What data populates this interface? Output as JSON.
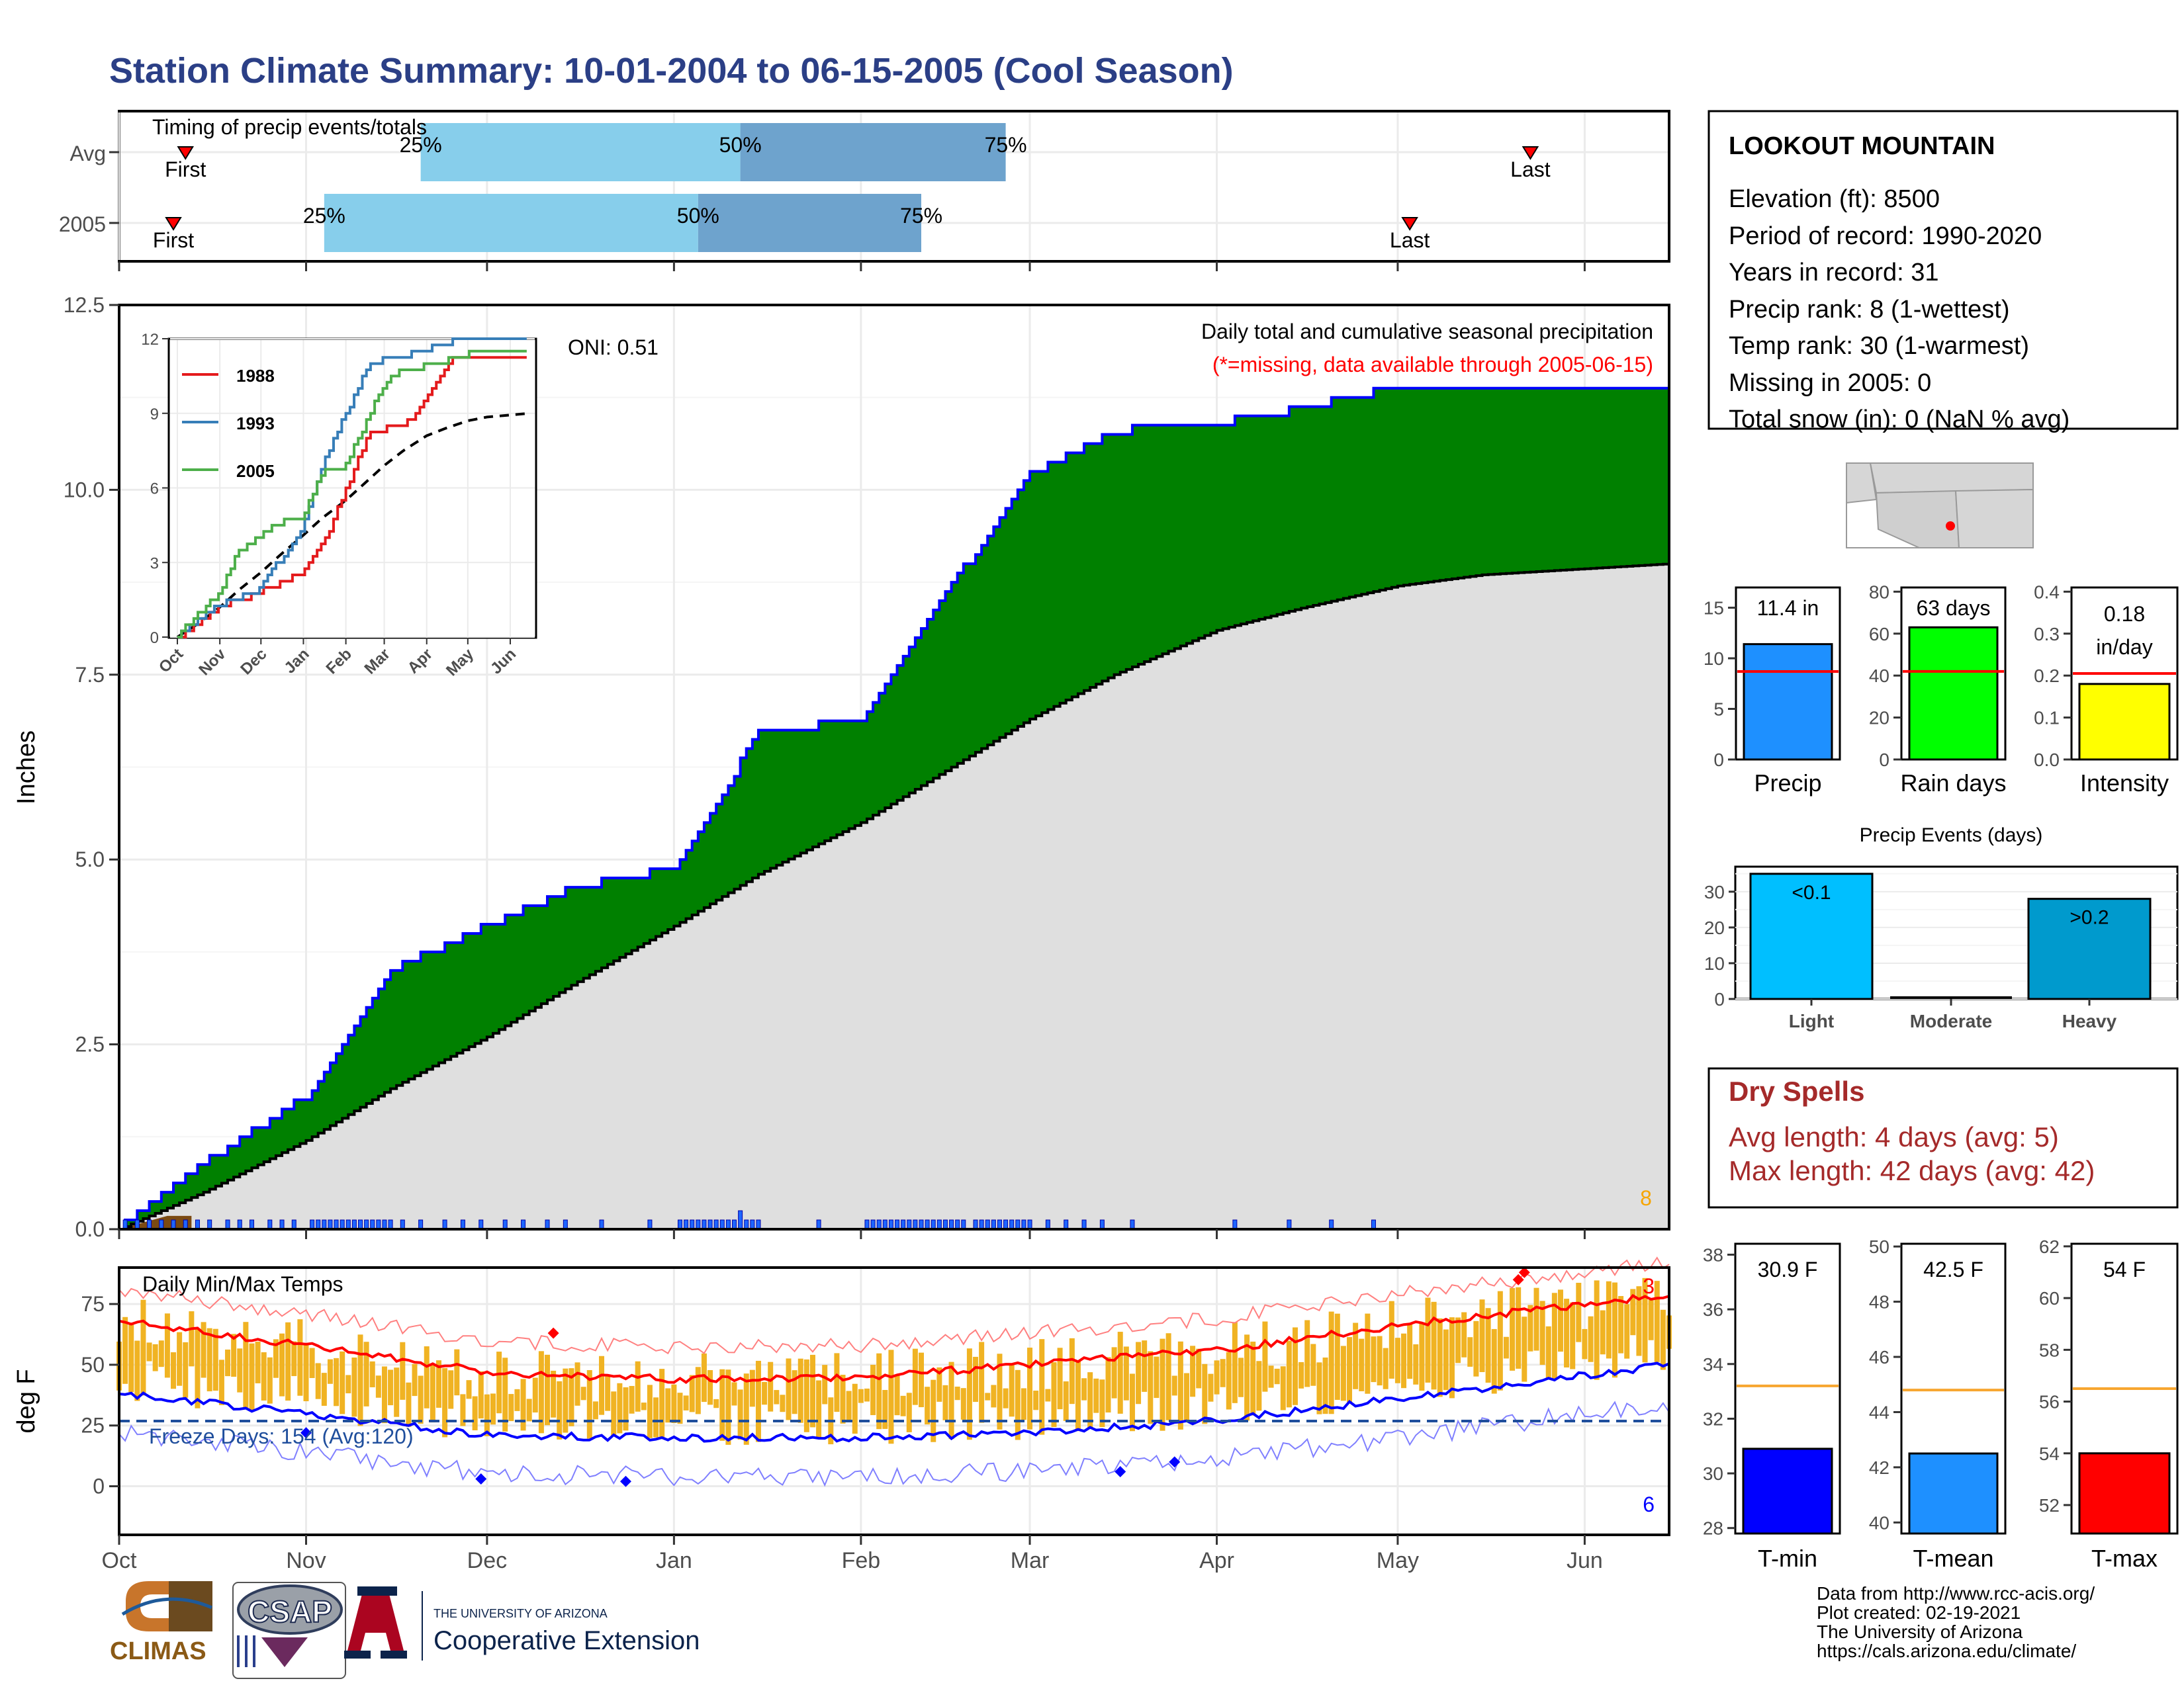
{
  "title": "Station Climate Summary: 10-01-2004 to 06-15-2005 (Cool Season)",
  "colors": {
    "title": "#2b3f86",
    "green": "#008000",
    "gray_area": "#dfdfdf",
    "blue_outline": "#0000ff",
    "orange": "#f7a500",
    "red": "#ff0000",
    "dry_spell": "#a52a2a",
    "light_blue": "#87ceeb",
    "steel_blue": "#6ea3cd",
    "precip_bar": "#1e90ff",
    "rain_bar": "#00ff00",
    "intensity_bar": "#ffff00",
    "events_light": "#00bfff",
    "events_heavy": "#009acd",
    "tmin": "#0000ff",
    "tmean": "#1e90ff",
    "tmax": "#ff0000",
    "bar_yellow": "#f0b323",
    "avg_line": "#f7a630"
  },
  "timing": {
    "title": "Timing of precip events/totals",
    "row_labels": [
      "Avg",
      "2005"
    ],
    "pct_labels": [
      "25%",
      "50%",
      "75%"
    ],
    "first_label": "First",
    "last_label": "Last",
    "avg": {
      "first": "10-12",
      "p25": "11-20",
      "p50": "01-12",
      "p75": "02-25",
      "last": "05-23"
    },
    "y2005": {
      "first": "10-10",
      "p25": "11-04",
      "p50": "01-05",
      "p75": "02-11",
      "last": "05-03"
    }
  },
  "main_chart": {
    "ylabel": "Inches",
    "y_ticks": [
      "0.0",
      "2.5",
      "5.0",
      "7.5",
      "10.0",
      "12.5"
    ],
    "x_ticks": [
      "Oct",
      "Nov",
      "Dec",
      "Jan",
      "Feb",
      "Mar",
      "Apr",
      "May",
      "Jun"
    ],
    "oni": "ONI: 0.51",
    "caption": "Daily total and cumulative seasonal precipitation",
    "missing_note": "(*=missing, data available through 2005-06-15)",
    "rank_marker": "8"
  },
  "inset": {
    "y_ticks": [
      "0",
      "3",
      "6",
      "9",
      "12"
    ],
    "x_ticks": [
      "Oct",
      "Nov",
      "Dec",
      "Jan",
      "Feb",
      "Mar",
      "Apr",
      "May",
      "Jun"
    ],
    "legend": [
      "1988",
      "1993",
      "2005"
    ]
  },
  "temp_chart": {
    "ylabel": "deg F",
    "title": "Daily Min/Max Temps",
    "freeze": "Freeze Days: 154 (Avg:120)",
    "y_ticks": [
      "0",
      "25",
      "50",
      "75"
    ],
    "x_ticks": [
      "Oct",
      "Nov",
      "Dec",
      "Jan",
      "Feb",
      "Mar",
      "Apr",
      "May",
      "Jun"
    ],
    "max_count": "3",
    "min_count": "6"
  },
  "station": {
    "name": "LOOKOUT MOUNTAIN",
    "lines": [
      "Elevation (ft): 8500",
      "Period of record: 1990-2020",
      "Years in record: 31",
      "Precip rank: 8 (1-wettest)",
      "Temp rank: 30 (1-warmest)",
      "Missing in 2005: 0",
      "Total snow (in): 0 (NaN % avg)"
    ]
  },
  "summary_bars": [
    {
      "label": "Precip",
      "value_text": "11.4 in",
      "value": 11.4,
      "avg": 8.7,
      "ymax": 17,
      "ticks": [
        "0",
        "5",
        "10",
        "15"
      ]
    },
    {
      "label": "Rain days",
      "value_text": "63 days",
      "value": 63,
      "avg": 42,
      "ymax": 82,
      "ticks": [
        "0",
        "20",
        "40",
        "60",
        "80"
      ]
    },
    {
      "label": "Intensity",
      "value_text_1": "0.18",
      "value_text_2": "in/day",
      "value": 0.18,
      "avg": 0.205,
      "ymax": 0.41,
      "ticks": [
        "0.0",
        "0.1",
        "0.2",
        "0.3",
        "0.4"
      ]
    }
  ],
  "events": {
    "title": "Precip Events (days)",
    "categories": [
      "Light",
      "Moderate",
      "Heavy"
    ],
    "values": [
      35,
      0,
      28
    ],
    "bar_labels": [
      "<0.1",
      "",
      ">0.2"
    ],
    "ticks": [
      "0",
      "10",
      "20",
      "30"
    ]
  },
  "dry_spells": {
    "title": "Dry Spells",
    "avg": "Avg length: 4 days (avg: 5)",
    "max": "Max length: 42 days (avg: 42)"
  },
  "temp_bars": [
    {
      "label": "T-min",
      "value_text": "30.9 F",
      "value": 30.9,
      "avg": 33.2,
      "ymin": 27.8,
      "ymax": 38.4,
      "ticks": [
        "28",
        "30",
        "32",
        "34",
        "36",
        "38"
      ]
    },
    {
      "label": "T-mean",
      "value_text": "42.5 F",
      "value": 42.5,
      "avg": 44.8,
      "ymin": 39.6,
      "ymax": 50.1,
      "ticks": [
        "40",
        "42",
        "44",
        "46",
        "48",
        "50"
      ]
    },
    {
      "label": "T-max",
      "value_text": "54 F",
      "value": 54,
      "avg": 56.5,
      "ymin": 50.9,
      "ymax": 62.1,
      "ticks": [
        "52",
        "54",
        "56",
        "58",
        "60",
        "62"
      ]
    }
  ],
  "footer": {
    "lines": [
      "Data from http://www.rcc-acis.org/",
      "Plot created: 02-19-2021",
      "The University of Arizona",
      "https://cals.arizona.edu/climate/"
    ],
    "climas": "CLIMAS",
    "csap": "CSAP",
    "ua_small": "THE UNIVERSITY OF ARIZONA",
    "ua_big": "Cooperative Extension"
  },
  "chart_data": [
    {
      "type": "area",
      "title": "Daily total and cumulative seasonal precipitation",
      "ylabel": "Inches",
      "ylim": [
        0,
        12.5
      ],
      "x": [
        "10-01",
        "10-15",
        "11-01",
        "11-15",
        "12-01",
        "12-15",
        "01-01",
        "01-15",
        "02-01",
        "02-15",
        "03-01",
        "03-15",
        "04-01",
        "04-15",
        "05-01",
        "05-15",
        "06-15"
      ],
      "series": [
        {
          "name": "2005",
          "values": [
            0.0,
            0.9,
            1.8,
            3.5,
            4.1,
            4.6,
            4.9,
            6.7,
            6.9,
            8.6,
            10.2,
            10.8,
            10.9,
            11.1,
            11.4,
            11.4,
            11.4
          ]
        },
        {
          "name": "Avg",
          "values": [
            0.0,
            0.5,
            1.2,
            1.9,
            2.6,
            3.3,
            4.1,
            4.8,
            5.5,
            6.2,
            6.9,
            7.5,
            8.1,
            8.4,
            8.7,
            8.85,
            9.0
          ]
        }
      ]
    },
    {
      "type": "line",
      "ylabel": "deg F",
      "title": "Daily Min/Max Temps",
      "ylim": [
        -20,
        90
      ],
      "x": [
        "10-01",
        "11-01",
        "12-01",
        "01-01",
        "02-01",
        "03-01",
        "04-01",
        "05-01",
        "06-15"
      ],
      "series": [
        {
          "name": "Avg max",
          "values": [
            68,
            58,
            47,
            44,
            45,
            50,
            56,
            66,
            79
          ]
        },
        {
          "name": "Avg min",
          "values": [
            38,
            30,
            21,
            20,
            20,
            22,
            27,
            36,
            50
          ]
        }
      ]
    }
  ]
}
